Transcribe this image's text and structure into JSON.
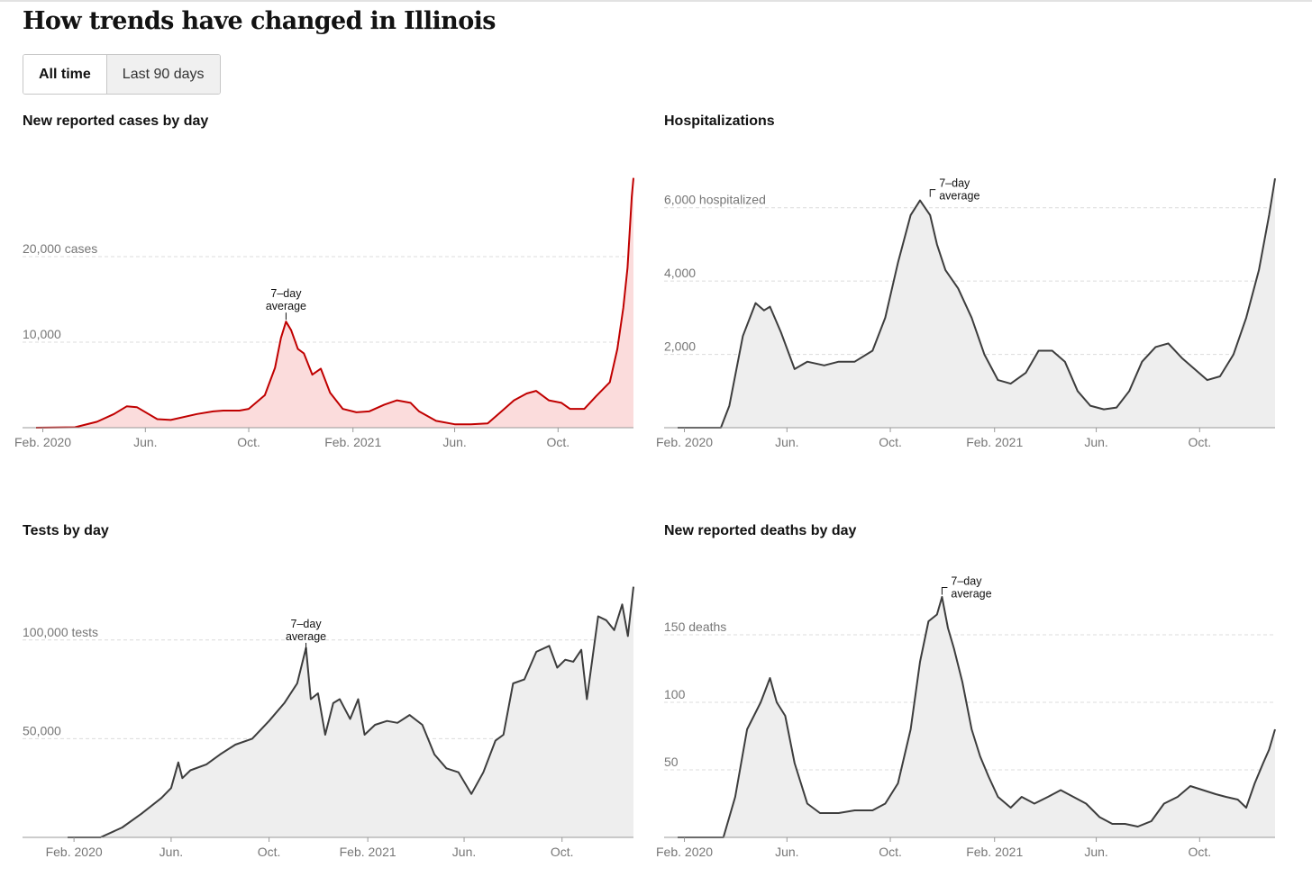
{
  "page": {
    "title": "How trends have changed in Illinois",
    "toggle": {
      "all_time": "All time",
      "last_90": "Last 90 days"
    }
  },
  "colors": {
    "cases_line": "#c00000",
    "cases_fill": "#fbdcdc",
    "line": "#3d3d3d",
    "fill": "#eeeeee"
  },
  "chart_data": [
    {
      "type": "area",
      "title": "New reported cases by day",
      "x_ticks": [
        "Feb. 2020",
        "Jun.",
        "Oct.",
        "Feb. 2021",
        "Jun.",
        "Oct."
      ],
      "x_tick_dates": [
        "2020-02-01",
        "2020-06-01",
        "2020-10-01",
        "2021-02-01",
        "2021-06-01",
        "2021-10-01"
      ],
      "x_range": [
        "2020-01-24",
        "2021-12-29"
      ],
      "y_ticks": [
        {
          "value": 20000,
          "label": "20,000 cases"
        },
        {
          "value": 10000,
          "label": "10,000"
        }
      ],
      "ylim": [
        0,
        30000
      ],
      "annotation": {
        "line1": "7–day",
        "line2": "average",
        "date": "2020-11-14",
        "value": 12400
      },
      "series": [
        {
          "x": [
            "2020-01-24",
            "2020-03-10",
            "2020-04-05",
            "2020-04-25",
            "2020-05-10",
            "2020-05-22",
            "2020-06-15",
            "2020-07-01",
            "2020-08-01",
            "2020-08-20",
            "2020-09-01",
            "2020-09-20",
            "2020-10-01",
            "2020-10-20",
            "2020-11-01",
            "2020-11-08",
            "2020-11-14",
            "2020-11-20",
            "2020-11-28",
            "2020-12-05",
            "2020-12-15",
            "2020-12-25",
            "2021-01-05",
            "2021-01-20",
            "2021-02-05",
            "2021-02-20",
            "2021-03-10",
            "2021-03-25",
            "2021-04-10",
            "2021-04-20",
            "2021-05-10",
            "2021-06-01",
            "2021-06-20",
            "2021-07-10",
            "2021-07-25",
            "2021-08-10",
            "2021-08-25",
            "2021-09-05",
            "2021-09-20",
            "2021-10-05",
            "2021-10-15",
            "2021-11-01",
            "2021-11-15",
            "2021-12-01",
            "2021-12-10",
            "2021-12-17",
            "2021-12-22",
            "2021-12-27",
            "2021-12-29"
          ],
          "y": [
            0,
            50,
            700,
            1600,
            2500,
            2400,
            1000,
            900,
            1600,
            1900,
            2000,
            2000,
            2200,
            3800,
            7000,
            10500,
            12400,
            11400,
            9200,
            8700,
            6200,
            6900,
            4100,
            2200,
            1800,
            1900,
            2700,
            3200,
            2900,
            1900,
            800,
            400,
            400,
            500,
            1800,
            3200,
            4000,
            4300,
            3200,
            2900,
            2200,
            2200,
            3700,
            5300,
            9200,
            14000,
            18700,
            27000,
            29200
          ]
        }
      ]
    },
    {
      "type": "area",
      "title": "Hospitalizations",
      "x_ticks": [
        "Feb. 2020",
        "Jun.",
        "Oct.",
        "Feb. 2021",
        "Jun.",
        "Oct."
      ],
      "x_tick_dates": [
        "2020-02-01",
        "2020-06-01",
        "2020-10-01",
        "2021-02-01",
        "2021-06-01",
        "2021-10-01"
      ],
      "x_range": [
        "2020-01-24",
        "2021-12-29"
      ],
      "y_ticks": [
        {
          "value": 6000,
          "label": "6,000 hospitalized"
        },
        {
          "value": 4000,
          "label": "4,000"
        },
        {
          "value": 2000,
          "label": "2,000"
        }
      ],
      "ylim": [
        0,
        7000
      ],
      "annotation": {
        "line1": "7–day",
        "line2": "average",
        "date": "2020-11-17",
        "value": 6200
      },
      "series": [
        {
          "x": [
            "2020-01-24",
            "2020-03-15",
            "2020-03-25",
            "2020-04-10",
            "2020-04-25",
            "2020-05-05",
            "2020-05-12",
            "2020-05-25",
            "2020-06-10",
            "2020-06-25",
            "2020-07-15",
            "2020-08-01",
            "2020-08-20",
            "2020-09-10",
            "2020-09-25",
            "2020-10-10",
            "2020-10-25",
            "2020-11-05",
            "2020-11-17",
            "2020-11-25",
            "2020-12-05",
            "2020-12-20",
            "2021-01-05",
            "2021-01-20",
            "2021-02-05",
            "2021-02-20",
            "2021-03-10",
            "2021-03-25",
            "2021-04-10",
            "2021-04-25",
            "2021-05-10",
            "2021-05-25",
            "2021-06-10",
            "2021-06-25",
            "2021-07-10",
            "2021-07-25",
            "2021-08-10",
            "2021-08-25",
            "2021-09-10",
            "2021-09-25",
            "2021-10-10",
            "2021-10-25",
            "2021-11-10",
            "2021-11-25",
            "2021-12-10",
            "2021-12-22",
            "2021-12-29"
          ],
          "y": [
            0,
            0,
            600,
            2500,
            3400,
            3200,
            3300,
            2600,
            1600,
            1800,
            1700,
            1800,
            1800,
            2100,
            3000,
            4500,
            5800,
            6200,
            5800,
            5000,
            4300,
            3800,
            3000,
            2000,
            1300,
            1200,
            1500,
            2100,
            2100,
            1800,
            1000,
            600,
            500,
            550,
            1000,
            1800,
            2200,
            2300,
            1900,
            1600,
            1300,
            1400,
            2000,
            3000,
            4300,
            5800,
            6800
          ]
        }
      ]
    },
    {
      "type": "area",
      "title": "Tests by day",
      "x_ticks": [
        "Feb. 2020",
        "Jun.",
        "Oct.",
        "Feb. 2021",
        "Jun.",
        "Oct."
      ],
      "x_tick_dates": [
        "2020-02-01",
        "2020-06-01",
        "2020-10-01",
        "2021-02-01",
        "2021-06-01",
        "2021-10-01"
      ],
      "x_range": [
        "2020-01-24",
        "2021-12-29"
      ],
      "y_ticks": [
        {
          "value": 100000,
          "label": "100,000 tests"
        },
        {
          "value": 50000,
          "label": "50,000"
        }
      ],
      "ylim": [
        0,
        130000
      ],
      "annotation": {
        "line1": "7–day",
        "line2": "average",
        "date": "2020-11-16",
        "value": 94000
      },
      "series": [
        {
          "x": [
            "2020-01-24",
            "2020-03-05",
            "2020-04-01",
            "2020-04-25",
            "2020-05-20",
            "2020-06-01",
            "2020-06-10",
            "2020-06-15",
            "2020-06-25",
            "2020-07-15",
            "2020-08-01",
            "2020-08-20",
            "2020-09-10",
            "2020-10-01",
            "2020-10-20",
            "2020-11-05",
            "2020-11-16",
            "2020-11-22",
            "2020-12-01",
            "2020-12-10",
            "2020-12-20",
            "2020-12-28",
            "2021-01-10",
            "2021-01-20",
            "2021-01-28",
            "2021-02-10",
            "2021-02-25",
            "2021-03-10",
            "2021-03-25",
            "2021-04-10",
            "2021-04-25",
            "2021-05-10",
            "2021-05-25",
            "2021-06-10",
            "2021-06-25",
            "2021-07-10",
            "2021-07-20",
            "2021-08-01",
            "2021-08-15",
            "2021-08-30",
            "2021-09-15",
            "2021-09-25",
            "2021-10-05",
            "2021-10-15",
            "2021-10-25",
            "2021-11-01",
            "2021-11-15",
            "2021-11-25",
            "2021-12-05",
            "2021-12-15",
            "2021-12-22",
            "2021-12-29"
          ],
          "y": [
            0,
            0,
            5000,
            12000,
            20000,
            25000,
            38000,
            30000,
            34000,
            37000,
            42000,
            47000,
            50000,
            59000,
            68000,
            78000,
            96000,
            70000,
            73000,
            52000,
            68000,
            70000,
            60000,
            70000,
            52000,
            57000,
            59000,
            58000,
            62000,
            57000,
            42000,
            35000,
            33000,
            22000,
            33000,
            49000,
            52000,
            78000,
            80000,
            94000,
            97000,
            86000,
            90000,
            89000,
            95000,
            70000,
            112000,
            110000,
            105000,
            118000,
            102000,
            127000
          ]
        }
      ]
    },
    {
      "type": "area",
      "title": "New reported deaths by day",
      "x_ticks": [
        "Feb. 2020",
        "Jun.",
        "Oct.",
        "Feb. 2021",
        "Jun.",
        "Oct."
      ],
      "x_tick_dates": [
        "2020-02-01",
        "2020-06-01",
        "2020-10-01",
        "2021-02-01",
        "2021-06-01",
        "2021-10-01"
      ],
      "x_range": [
        "2020-01-24",
        "2021-12-29"
      ],
      "y_ticks": [
        {
          "value": 150,
          "label": "150 deaths"
        },
        {
          "value": 100,
          "label": "100"
        },
        {
          "value": 50,
          "label": "50"
        }
      ],
      "ylim": [
        0,
        190
      ],
      "annotation": {
        "line1": "7–day",
        "line2": "average",
        "date": "2020-12-01",
        "value": 177
      },
      "series": [
        {
          "x": [
            "2020-01-24",
            "2020-03-18",
            "2020-04-01",
            "2020-04-15",
            "2020-05-01",
            "2020-05-12",
            "2020-05-20",
            "2020-05-30",
            "2020-06-10",
            "2020-06-25",
            "2020-07-10",
            "2020-08-01",
            "2020-08-20",
            "2020-09-10",
            "2020-09-25",
            "2020-10-10",
            "2020-10-25",
            "2020-11-05",
            "2020-11-15",
            "2020-11-25",
            "2020-12-01",
            "2020-12-08",
            "2020-12-15",
            "2020-12-25",
            "2021-01-05",
            "2021-01-15",
            "2021-01-25",
            "2021-02-05",
            "2021-02-20",
            "2021-03-05",
            "2021-03-20",
            "2021-04-05",
            "2021-04-20",
            "2021-05-05",
            "2021-05-20",
            "2021-06-05",
            "2021-06-20",
            "2021-07-05",
            "2021-07-20",
            "2021-08-05",
            "2021-08-20",
            "2021-09-05",
            "2021-09-20",
            "2021-10-05",
            "2021-10-20",
            "2021-11-01",
            "2021-11-15",
            "2021-11-25",
            "2021-12-05",
            "2021-12-15",
            "2021-12-22",
            "2021-12-29"
          ],
          "y": [
            0,
            0,
            30,
            80,
            100,
            118,
            100,
            90,
            55,
            25,
            18,
            18,
            20,
            20,
            25,
            40,
            80,
            130,
            160,
            165,
            178,
            155,
            140,
            115,
            80,
            60,
            45,
            30,
            22,
            30,
            25,
            30,
            35,
            30,
            25,
            15,
            10,
            10,
            8,
            12,
            25,
            30,
            38,
            35,
            32,
            30,
            28,
            22,
            40,
            55,
            65,
            80
          ]
        }
      ]
    }
  ]
}
